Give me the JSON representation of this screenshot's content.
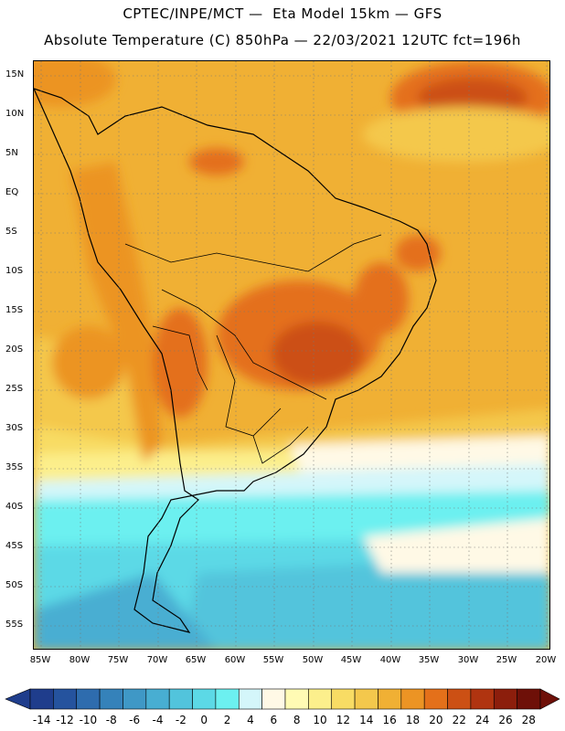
{
  "header": {
    "line1": "CPTEC/INPE/MCT —  Eta Model 15km — GFS",
    "line2": "Absolute Temperature (C) 850hPa — 22/03/2021 12UTC fct=196h"
  },
  "map": {
    "lat_labels": [
      "15N",
      "10N",
      "5N",
      "EQ",
      "5S",
      "10S",
      "15S",
      "20S",
      "25S",
      "30S",
      "35S",
      "40S",
      "45S",
      "50S",
      "55S"
    ],
    "lon_labels": [
      "85W",
      "80W",
      "75W",
      "70W",
      "65W",
      "60W",
      "55W",
      "50W",
      "45W",
      "40W",
      "35W",
      "30W",
      "25W",
      "20W"
    ]
  },
  "colorbar": {
    "labels": [
      "-14",
      "-12",
      "-10",
      "-8",
      "-6",
      "-4",
      "-2",
      "0",
      "2",
      "4",
      "6",
      "8",
      "10",
      "12",
      "14",
      "16",
      "18",
      "20",
      "22",
      "24",
      "26",
      "28"
    ],
    "colors": [
      "#1f3d8c",
      "#25539e",
      "#2e6cae",
      "#3582ba",
      "#3f98c6",
      "#48aed2",
      "#52c4dc",
      "#5cd9e6",
      "#6cf0f0",
      "#d4f6fa",
      "#fff9e6",
      "#fffbb4",
      "#fcef8c",
      "#f8dc64",
      "#f4c84c",
      "#f0b034",
      "#ec9424",
      "#e4701a",
      "#cc5014",
      "#b03410",
      "#8c1e0c",
      "#6e1008"
    ]
  }
}
